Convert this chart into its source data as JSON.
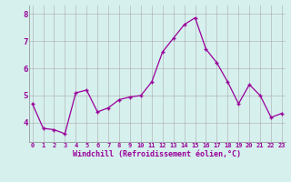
{
  "hours": [
    0,
    1,
    2,
    3,
    4,
    5,
    6,
    7,
    8,
    9,
    10,
    11,
    12,
    13,
    14,
    15,
    16,
    17,
    18,
    19,
    20,
    21,
    22,
    23
  ],
  "y_values": [
    4.7,
    3.8,
    3.75,
    3.6,
    5.1,
    5.2,
    4.4,
    4.55,
    4.85,
    4.95,
    5.0,
    5.5,
    6.6,
    7.1,
    7.6,
    7.85,
    6.7,
    6.2,
    5.5,
    4.7,
    5.4,
    5.0,
    4.2,
    4.35
  ],
  "line_color": "#990099",
  "marker_color": "#990099",
  "bg_color": "#d6f0ee",
  "grid_color": "#aaaaaa",
  "xlabel": "Windchill (Refroidissement éolien,°C)",
  "ylim_min": 3.3,
  "ylim_max": 8.3,
  "yticks": [
    4,
    5,
    6,
    7,
    8
  ],
  "xtick_labels": [
    "0",
    "1",
    "2",
    "3",
    "4",
    "5",
    "6",
    "7",
    "8",
    "9",
    "10",
    "11",
    "12",
    "13",
    "14",
    "15",
    "16",
    "17",
    "18",
    "19",
    "20",
    "21",
    "22",
    "23"
  ]
}
